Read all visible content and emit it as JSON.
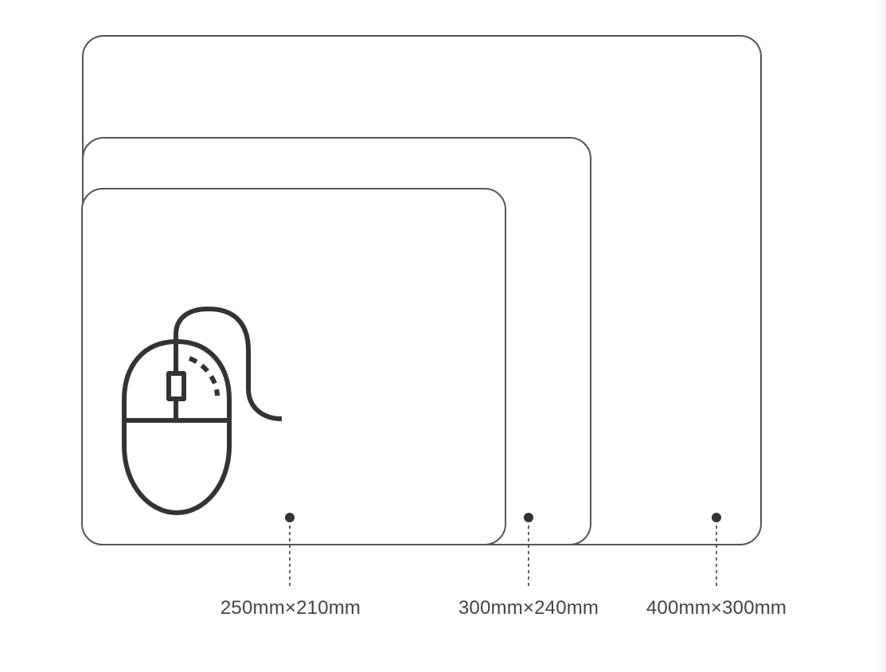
{
  "sizes": [
    {
      "label": "250mm×210mm"
    },
    {
      "label": "300mm×240mm"
    },
    {
      "label": "400mm×300mm"
    }
  ],
  "colors": {
    "outline": "#555555",
    "icon": "#333333",
    "text": "#444444",
    "background": "#ffffff"
  },
  "icons": {
    "mouse": "mouse-icon"
  }
}
